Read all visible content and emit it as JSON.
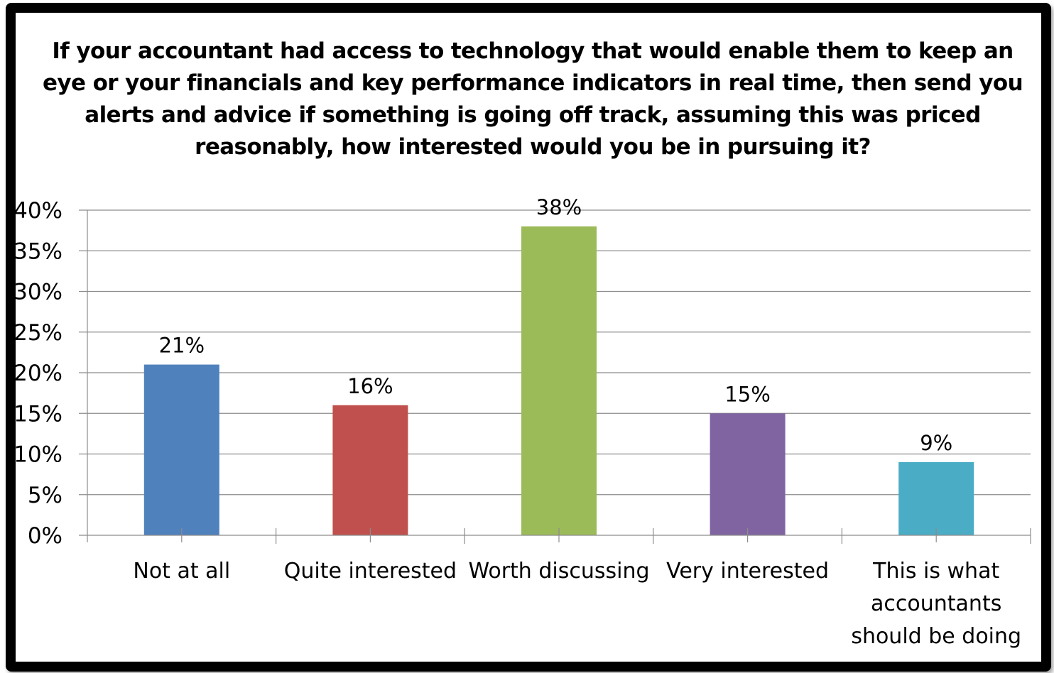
{
  "chart_data": {
    "type": "bar",
    "title": "If your accountant had access to technology that would enable them to keep an eye or your financials and key performance indicators in real time, then send you alerts and advice if something is going off track, assuming this was priced reasonably, how interested would you be in pursuing it?",
    "title_lines": [
      "If your accountant had access to technology that would enable them to keep an",
      "eye or your financials and key performance indicators in real time, then send you",
      "alerts and advice if something is going off track, assuming this was priced",
      "reasonably, how interested would you be in pursuing it?"
    ],
    "categories": [
      "Not at all",
      "Quite interested",
      "Worth discussing",
      "Very interested",
      "This is what accountants should be doing"
    ],
    "category_label_lines": [
      [
        "Not at all"
      ],
      [
        "Quite interested"
      ],
      [
        "Worth discussing"
      ],
      [
        "Very interested"
      ],
      [
        "This is what",
        "accountants",
        "should be doing"
      ]
    ],
    "values": [
      21,
      16,
      38,
      15,
      9
    ],
    "data_labels": [
      "21%",
      "16%",
      "38%",
      "15%",
      "9%"
    ],
    "colors": [
      "#4f81bd",
      "#c0504d",
      "#9bbb59",
      "#8064a2",
      "#4bacc6"
    ],
    "xlabel": "",
    "ylabel": "",
    "ylim": [
      0,
      40
    ],
    "yticks": [
      0,
      5,
      10,
      15,
      20,
      25,
      30,
      35,
      40
    ],
    "ytick_labels": [
      "0%",
      "5%",
      "10%",
      "15%",
      "20%",
      "25%",
      "30%",
      "35%",
      "40%"
    ],
    "grid": true,
    "legend": "none"
  }
}
